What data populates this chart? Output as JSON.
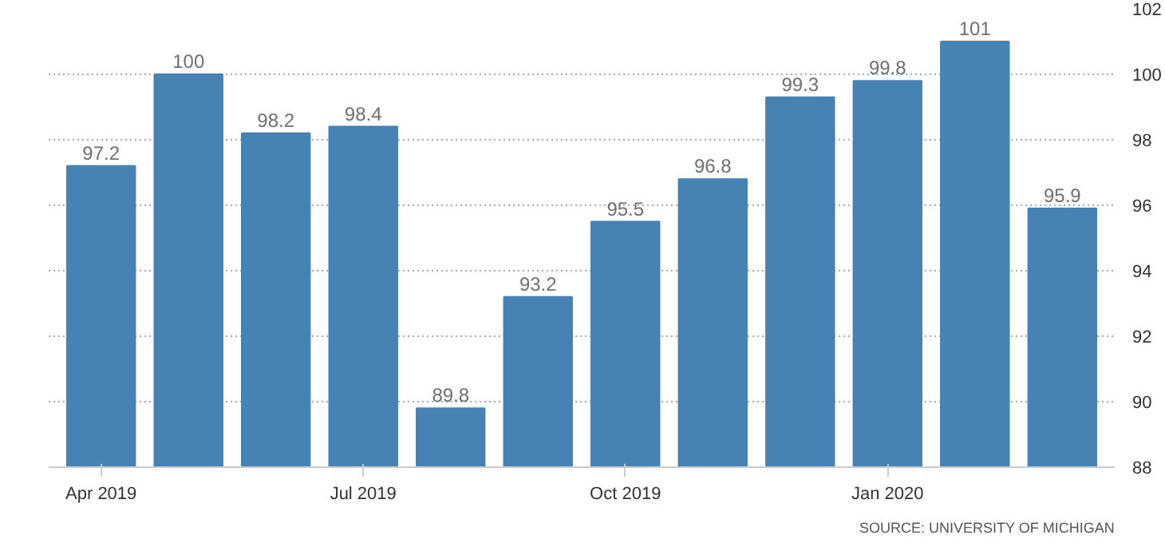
{
  "chart_data": {
    "type": "bar",
    "categories": [
      "Apr 2019",
      null,
      null,
      "Jul 2019",
      null,
      null,
      "Oct 2019",
      null,
      null,
      "Jan 2020",
      null,
      null
    ],
    "values": [
      97.2,
      100,
      98.2,
      98.4,
      89.8,
      93.2,
      95.5,
      96.8,
      99.3,
      99.8,
      101,
      95.9
    ],
    "color": "#4682b4",
    "ylim": [
      88,
      102
    ],
    "yticks": [
      88,
      90,
      92,
      94,
      96,
      98,
      100,
      102
    ],
    "grid": "y",
    "data_labels": true,
    "annotations": [
      "SOURCE: UNIVERSITY OF MICHIGAN"
    ]
  }
}
